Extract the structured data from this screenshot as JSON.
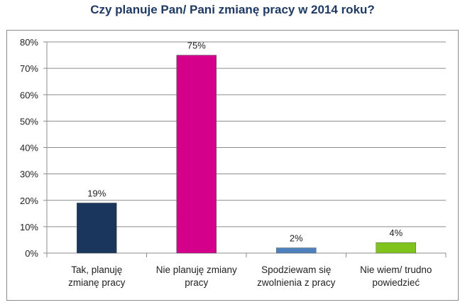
{
  "chart_data": {
    "type": "bar",
    "title": "Czy planuje Pan/ Pani zmianę pracy w 2014 roku?",
    "categories": [
      "Tak, planuję\nzmianę pracy",
      "Nie planuję zmiany\npracy",
      "Spodziewam się\nzwolnienia z pracy",
      "Nie wiem/ trudno\npowiedzieć"
    ],
    "values": [
      19,
      75,
      2,
      4
    ],
    "value_labels": [
      "19%",
      "75%",
      "2%",
      "4%"
    ],
    "colors": [
      "#1b365d",
      "#d4008c",
      "#4f81bd",
      "#7fc31c"
    ],
    "ylim": [
      0,
      80
    ],
    "yticks": [
      0,
      10,
      20,
      30,
      40,
      50,
      60,
      70,
      80
    ],
    "ytick_labels": [
      "0%",
      "10%",
      "20%",
      "30%",
      "40%",
      "50%",
      "60%",
      "70%",
      "80%"
    ],
    "grid": true,
    "legend": "none",
    "xlabel": "",
    "ylabel": ""
  }
}
